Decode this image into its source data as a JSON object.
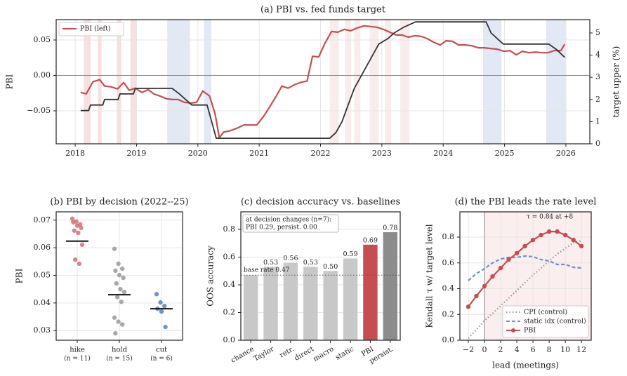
{
  "chart_data": [
    {
      "type": "line",
      "title": "(a) PBI vs. fed funds target",
      "ylabel": "PBI",
      "ylabel_color": "#c44e52",
      "y2label": "target upper (%)",
      "xlim": [
        2017.69,
        2026.39
      ],
      "xticks": [
        2018,
        2019,
        2020,
        2021,
        2022,
        2023,
        2024,
        2025,
        2026
      ],
      "ylim": [
        -0.0965,
        0.0787
      ],
      "yticks": [
        {
          "value": -0.05,
          "label": "−0.05"
        },
        {
          "value": 0,
          "label": "0.00"
        },
        0.05
      ],
      "y2lim": [
        0,
        5.6
      ],
      "y2ticks": [
        0,
        1,
        2,
        3,
        4,
        5
      ],
      "grid": true,
      "legend": "upper left",
      "reference_line": 0,
      "spans": [
        {
          "start": 2018.14,
          "end": 2018.25,
          "color": "#f6e0e0"
        },
        {
          "start": 2018.37,
          "end": 2018.43,
          "color": "#f6e0e0"
        },
        {
          "start": 2018.68,
          "end": 2018.75,
          "color": "#f6e0e0"
        },
        {
          "start": 2018.9,
          "end": 2019.0,
          "color": "#f6e0e0"
        },
        {
          "start": 2019.5,
          "end": 2019.87,
          "color": "#e2e9f4"
        },
        {
          "start": 2020.1,
          "end": 2020.22,
          "color": "#e2e9f4"
        },
        {
          "start": 2022.15,
          "end": 2022.3,
          "color": "#f9ecec"
        },
        {
          "start": 2022.4,
          "end": 2022.5,
          "color": "#f9ecec"
        },
        {
          "start": 2022.55,
          "end": 2022.65,
          "color": "#f9ecec"
        },
        {
          "start": 2022.8,
          "end": 2022.95,
          "color": "#f9ecec"
        },
        {
          "start": 2023.05,
          "end": 2023.15,
          "color": "#f9ecec"
        },
        {
          "start": 2023.3,
          "end": 2023.45,
          "color": "#f9ecec"
        },
        {
          "start": 2024.65,
          "end": 2024.95,
          "color": "#e2e9f4"
        },
        {
          "start": 2025.68,
          "end": 2026.0,
          "color": "#e2e9f4"
        }
      ],
      "series": [
        {
          "name": "PBI (left)",
          "color": "#c44e52",
          "x": [
            2018.09,
            2018.18,
            2018.29,
            2018.4,
            2018.48,
            2018.58,
            2018.69,
            2018.79,
            2018.88,
            2018.98,
            2019.09,
            2019.19,
            2019.28,
            2019.38,
            2019.49,
            2019.59,
            2019.68,
            2019.78,
            2019.89,
            2019.98,
            2020.08,
            2020.19,
            2020.28,
            2020.35,
            2020.42,
            2020.53,
            2020.65,
            2020.75,
            2020.86,
            2020.96,
            2021.07,
            2021.18,
            2021.28,
            2021.37,
            2021.47,
            2021.58,
            2021.67,
            2021.78,
            2021.87,
            2021.97,
            2022.07,
            2022.18,
            2022.28,
            2022.39,
            2022.49,
            2022.6,
            2022.71,
            2022.81,
            2022.92,
            2023.02,
            2023.13,
            2023.23,
            2023.33,
            2023.43,
            2023.54,
            2023.64,
            2023.74,
            2023.84,
            2023.95,
            2024.05,
            2024.15,
            2024.25,
            2024.36,
            2024.46,
            2024.57,
            2024.67,
            2024.77,
            2024.88,
            2024.99,
            2025.09,
            2025.19,
            2025.29,
            2025.4,
            2025.5,
            2025.61,
            2025.71,
            2025.81,
            2025.92,
            2025.98
          ],
          "values": [
            -0.024,
            -0.026,
            -0.009,
            -0.006,
            -0.015,
            -0.016,
            -0.019,
            -0.01,
            -0.021,
            -0.018,
            -0.024,
            -0.02,
            -0.026,
            -0.029,
            -0.033,
            -0.034,
            -0.034,
            -0.038,
            -0.039,
            -0.038,
            -0.022,
            -0.029,
            -0.054,
            -0.088,
            -0.08,
            -0.078,
            -0.074,
            -0.07,
            -0.07,
            -0.07,
            -0.058,
            -0.043,
            -0.029,
            -0.015,
            -0.018,
            -0.013,
            -0.01,
            -0.008,
            0.027,
            0.026,
            0.045,
            0.062,
            0.061,
            0.065,
            0.063,
            0.067,
            0.07,
            0.069,
            0.068,
            0.065,
            0.061,
            0.057,
            0.057,
            0.054,
            0.056,
            0.055,
            0.052,
            0.047,
            0.043,
            0.049,
            0.048,
            0.043,
            0.043,
            0.042,
            0.039,
            0.039,
            0.038,
            0.037,
            0.034,
            0.035,
            0.029,
            0.034,
            0.032,
            0.033,
            0.032,
            0.032,
            0.035,
            0.035,
            0.044
          ]
        },
        {
          "color": "#333333",
          "axis": "y2",
          "x": [
            2018.09,
            2018.22,
            2018.25,
            2018.45,
            2018.48,
            2018.7,
            2018.73,
            2018.95,
            2018.98,
            2019.58,
            2019.7,
            2019.8,
            2019.9,
            2020.15,
            2020.2,
            2020.3,
            2022.15,
            2022.25,
            2022.35,
            2022.45,
            2022.55,
            2022.7,
            2022.85,
            2022.95,
            2023.1,
            2023.2,
            2023.35,
            2023.55,
            2024.7,
            2024.78,
            2024.88,
            2024.98,
            2025.72,
            2025.85,
            2025.98
          ],
          "values": [
            1.5,
            1.5,
            1.75,
            1.75,
            2.0,
            2.0,
            2.25,
            2.25,
            2.5,
            2.5,
            2.25,
            2.0,
            1.75,
            1.75,
            1.25,
            0.25,
            0.25,
            0.5,
            1.0,
            1.75,
            2.5,
            3.25,
            4.0,
            4.5,
            4.75,
            5.0,
            5.25,
            5.5,
            5.5,
            5.0,
            4.75,
            4.5,
            4.5,
            4.25,
            3.9
          ]
        }
      ]
    },
    {
      "type": "strip",
      "title": "(b) PBI by decision (2022--25)",
      "ylabel": "PBI",
      "categories": [
        "hike",
        "hold",
        "cut"
      ],
      "category_notes": [
        "(n = 11)",
        "(n = 15)",
        "(n = 6)"
      ],
      "colors": [
        "#d0717a",
        "#9a9a9a",
        "#5b82b8"
      ],
      "median_color": "#111111",
      "ylim": [
        0.0265,
        0.073
      ],
      "yticks": [
        0.03,
        0.04,
        0.05,
        0.06,
        0.07
      ],
      "grid": true,
      "points": [
        [
          0.0705,
          0.0695,
          0.0685,
          0.0692,
          0.068,
          0.0672,
          0.0662,
          0.0654,
          0.0611,
          0.0557,
          0.0542
        ],
        [
          0.0596,
          0.0542,
          0.0524,
          0.0517,
          0.0501,
          0.0491,
          0.0471,
          0.045,
          0.044,
          0.0421,
          0.0404,
          0.0347,
          0.0332,
          0.0322,
          0.029
        ],
        [
          0.0432,
          0.0402,
          0.0389,
          0.0379,
          0.0369,
          0.0313
        ]
      ],
      "medians": [
        0.0624,
        0.043,
        0.0379
      ]
    },
    {
      "type": "bar",
      "title": "(c) decision accuracy vs. baselines",
      "ylabel": "OOS accuracy",
      "categories": [
        "chance",
        "Taylor",
        "retr.",
        "direct",
        "macro",
        "static",
        "PBI",
        "persist."
      ],
      "values": [
        0.47,
        0.53,
        0.56,
        0.53,
        0.5,
        0.59,
        0.69,
        0.78
      ],
      "value_labels": [
        null,
        "0.53",
        "0.56",
        "0.53",
        "0.50",
        "0.59",
        "0.69",
        "0.78"
      ],
      "colors": [
        "#c8c8c8",
        "#c8c8c8",
        "#c8c8c8",
        "#c8c8c8",
        "#c8c8c8",
        "#c8c8c8",
        "#c44e52",
        "#8c8c8c"
      ],
      "ylim": [
        0,
        0.927
      ],
      "yticks": [
        {
          "value": 0,
          "label": "0.0"
        },
        0.2,
        0.4,
        0.6,
        0.8
      ],
      "grid": true,
      "base_rate": 0.47,
      "base_rate_label": "base rate 0.47",
      "annotation": [
        "at decision changes (n=7):",
        "PBI 0.29, persist. 0.00"
      ]
    },
    {
      "type": "line",
      "title": "(d) the PBI leads the rate level",
      "xlabel": "lead (meetings)",
      "ylabel": "Kendall τ w/ target level",
      "x": [
        -2,
        -1,
        0,
        1,
        2,
        3,
        4,
        5,
        6,
        7,
        8,
        9,
        10,
        11,
        12
      ],
      "xlim": [
        -3.04,
        13.2
      ],
      "xticks": [
        {
          "value": -2,
          "label": "−2"
        },
        0,
        2,
        4,
        6,
        8,
        10,
        12
      ],
      "ylim": [
        0,
        0.996
      ],
      "yticks": [
        {
          "value": 0,
          "label": "0.0"
        },
        0.2,
        0.4,
        0.6,
        0.8
      ],
      "grid": true,
      "legend": "lower right",
      "vline": 0,
      "shade_start": 0,
      "shade_color": "#fbeeee",
      "annotation": "τ = 0.84 at +8",
      "annotation_color": "#d05a60",
      "series": [
        {
          "name": "CPI (control)",
          "color": "#999999",
          "dash": "dotted",
          "values": [
            0.016,
            0.082,
            0.152,
            0.207,
            0.267,
            0.327,
            0.386,
            0.446,
            0.506,
            0.56,
            0.615,
            0.669,
            0.713,
            0.756,
            0.773
          ]
        },
        {
          "name": "static idx (control)",
          "color": "#6f8fc4",
          "dash": "dashed",
          "values": [
            0.463,
            0.517,
            0.555,
            0.6,
            0.63,
            0.642,
            0.642,
            0.653,
            0.648,
            0.626,
            0.615,
            0.588,
            0.588,
            0.566,
            0.56
          ]
        },
        {
          "name": "PBI",
          "color": "#c44e52",
          "dash": "solid",
          "markers": true,
          "values": [
            0.26,
            0.343,
            0.42,
            0.495,
            0.56,
            0.626,
            0.675,
            0.73,
            0.778,
            0.816,
            0.843,
            0.843,
            0.816,
            0.778,
            0.73
          ]
        }
      ]
    }
  ]
}
